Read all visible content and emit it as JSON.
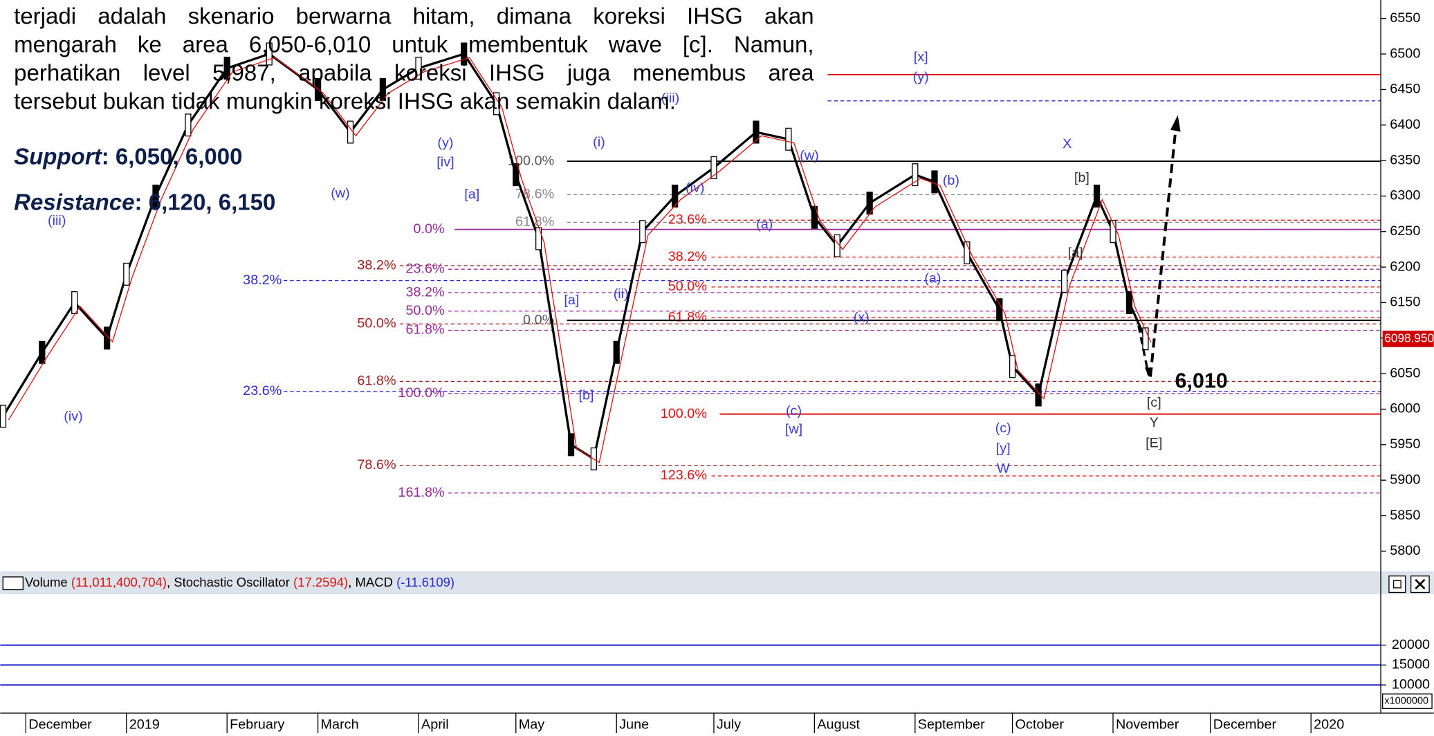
{
  "text": {
    "lines": [
      "terjadi adalah skenario berwarna hitam, dimana koreksi IHSG akan",
      "mengarah ke area 6,050-6,010 untuk membentuk wave [c]. Namun,",
      "perhatikan level 5,987, apabila koreksi IHSG juga menembus area",
      "tersebut bukan tidak mungkin koreksi IHSG akan semakin dalam."
    ]
  },
  "support": {
    "label": "Support",
    "levels": ": 6,050, 6,000"
  },
  "resistance": {
    "label": "Resistance",
    "levels": ": 6,120, 6,150"
  },
  "target_label": "6,010",
  "chart_data": {
    "type": "line",
    "color": "#000000",
    "x": [
      -7,
      5,
      15,
      25,
      31,
      40,
      50,
      62,
      75,
      90,
      100,
      110,
      121,
      135,
      145,
      151,
      158,
      168,
      175,
      182,
      190,
      200,
      212,
      225,
      235,
      243,
      250,
      260,
      274,
      280,
      290,
      300,
      304,
      312,
      320,
      330,
      335,
      340,
      345
    ],
    "values": [
      5990,
      6080,
      6150,
      6100,
      6190,
      6300,
      6400,
      6480,
      6500,
      6450,
      6390,
      6450,
      6480,
      6500,
      6430,
      6330,
      6240,
      5950,
      5930,
      6080,
      6250,
      6300,
      6340,
      6390,
      6380,
      6270,
      6230,
      6290,
      6330,
      6320,
      6220,
      6140,
      6060,
      6020,
      6180,
      6300,
      6250,
      6150,
      6099
    ],
    "xlim": [
      -7.9,
      417.5
    ],
    "xticks": [
      {
        "value": 0,
        "label": "December"
      },
      {
        "value": 31,
        "label": "2019"
      },
      {
        "value": 62,
        "label": "February"
      },
      {
        "value": 90,
        "label": "March"
      },
      {
        "value": 121,
        "label": "April"
      },
      {
        "value": 151,
        "label": "May"
      },
      {
        "value": 182,
        "label": "June"
      },
      {
        "value": 212,
        "label": "July"
      },
      {
        "value": 243,
        "label": "August"
      },
      {
        "value": 274,
        "label": "September"
      },
      {
        "value": 304,
        "label": "October"
      },
      {
        "value": 335,
        "label": "November"
      },
      {
        "value": 365,
        "label": "December"
      },
      {
        "value": 396,
        "label": "2020"
      }
    ],
    "ylim": [
      5778,
      6576
    ],
    "yticks": [
      5800,
      5850,
      5900,
      5950,
      6000,
      6050,
      6100,
      6150,
      6200,
      6250,
      6300,
      6350,
      6400,
      6450,
      6500,
      6550
    ],
    "last_price": {
      "value": 6098.95,
      "label": "6098.950"
    },
    "horizontal_lines": [
      {
        "value": 6471,
        "color": "#e01010"
      },
      {
        "value": 6434,
        "color": "#2b2bd6"
      }
    ],
    "fib_levels": [
      {
        "label": "38.2%",
        "value": 6181,
        "color": "#2b2bd6"
      },
      {
        "label": "23.6%",
        "value": 6025,
        "color": "#2b2bd6"
      },
      {
        "label": "38.2%",
        "value": 6202,
        "color": "#a02020"
      },
      {
        "label": "50.0%",
        "value": 6120,
        "color": "#a02020"
      },
      {
        "label": "61.8%",
        "value": 6039,
        "color": "#a02020"
      },
      {
        "label": "78.6%",
        "value": 5921,
        "color": "#a02020"
      },
      {
        "label": "0.0%",
        "value": 6253,
        "color": "#9a2a9a"
      },
      {
        "label": "23.6%",
        "value": 6197,
        "color": "#9a2a9a"
      },
      {
        "label": "38.2%",
        "value": 6164,
        "color": "#9a2a9a"
      },
      {
        "label": "50.0%",
        "value": 6138,
        "color": "#9a2a9a"
      },
      {
        "label": "61.8%",
        "value": 6111,
        "color": "#9a2a9a"
      },
      {
        "label": "100.0%",
        "value": 6022,
        "color": "#9a2a9a"
      },
      {
        "label": "161.8%",
        "value": 5882,
        "color": "#9a2a9a"
      },
      {
        "label": "100.0%",
        "value": 5993,
        "color": "#e01010"
      },
      {
        "label": "123.6%",
        "value": 5906,
        "color": "#e01010"
      },
      {
        "label": "61.8%",
        "value": 6129,
        "color": "#e01010"
      },
      {
        "label": "50.0%",
        "value": 6172,
        "color": "#e01010"
      },
      {
        "label": "38.2%",
        "value": 6214,
        "color": "#e01010"
      },
      {
        "label": "23.6%",
        "value": 6266,
        "color": "#e01010"
      },
      {
        "label": "100.0%",
        "value": 6349,
        "color": "#555555"
      },
      {
        "label": "0.0%",
        "value": 6125,
        "color": "#555555"
      },
      {
        "label": "78.6%",
        "value": 6302,
        "color": "#888888"
      },
      {
        "label": "61.8%",
        "value": 6263,
        "color": "#888888"
      }
    ],
    "wave_labels": [
      "(iv)",
      "(iii)",
      "(w)",
      "[a]",
      "(y)",
      "[iv]",
      "(i)",
      "(iii)",
      "(iv)",
      "[a]",
      "(ii)",
      "[b]",
      "(w)",
      "(a)",
      "(x)",
      "(c)",
      "[w]",
      "[x]",
      "(y)",
      "(b)",
      "(a)",
      "X",
      "[b]",
      "[a]",
      "(c)",
      "[y]",
      "W",
      "[c]",
      "Y",
      "[E]"
    ]
  },
  "indicator": {
    "header": [
      {
        "text": "Volume ",
        "color": "#000000"
      },
      {
        "text": "(11,011,400,704)",
        "color": "#e01010"
      },
      {
        "text": ", Stochastic Oscillator ",
        "color": "#000000"
      },
      {
        "text": "(17.2594)",
        "color": "#e01010"
      },
      {
        "text": ", MACD ",
        "color": "#000000"
      },
      {
        "text": "(-11.6109)",
        "color": "#2b2bd6"
      }
    ],
    "ylim": [
      3850,
      32300
    ],
    "yticks": [
      20000,
      15000,
      10000
    ],
    "unit": "x1000000"
  }
}
